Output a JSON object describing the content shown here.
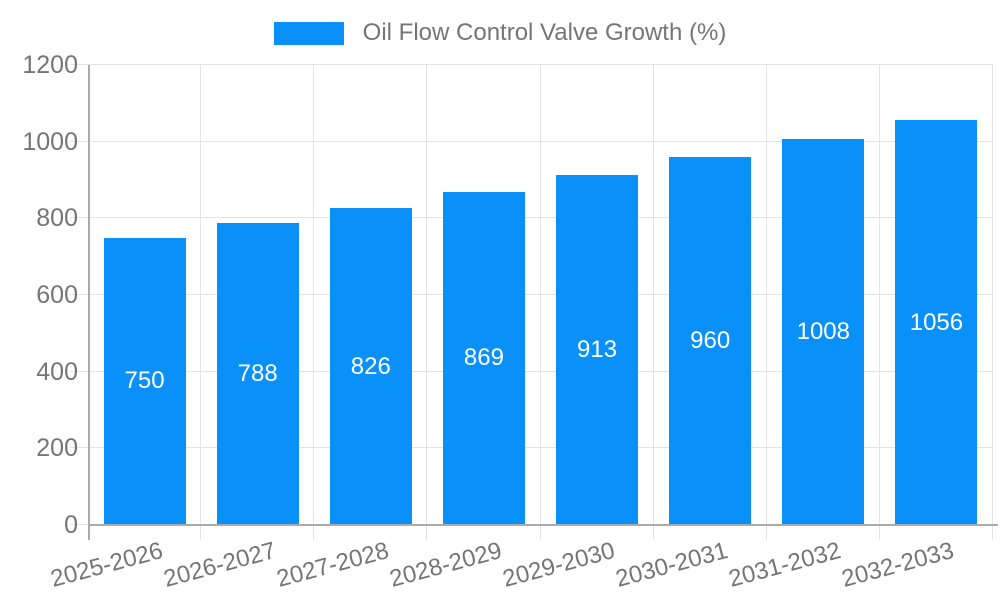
{
  "chart_data": {
    "type": "bar",
    "title": "Oil Flow Control Valve Growth (%)",
    "legend": [
      "Oil Flow Control Valve Growth (%)"
    ],
    "legend_position": "top-center",
    "categories": [
      "2025-2026",
      "2026-2027",
      "2027-2028",
      "2028-2029",
      "2029-2030",
      "2030-2031",
      "2031-2032",
      "2032-2033"
    ],
    "values": [
      750,
      788,
      826,
      869,
      913,
      960,
      1008,
      1056
    ],
    "yticks": [
      0,
      200,
      400,
      600,
      800,
      1000,
      1200
    ],
    "ylim": [
      0,
      1200
    ],
    "xlabel": "",
    "ylabel": "",
    "grid": "on",
    "x_label_rotation_deg": -15,
    "bar_value_labels": [
      "750",
      "788",
      "826",
      "869",
      "913",
      "960",
      "1008",
      "1056"
    ]
  },
  "colors": {
    "bar": "#0991f9",
    "bar_value_text": "#ffffff",
    "axis_text": "#757575",
    "gridline": "#e4e4e4",
    "axis_line": "#ababab",
    "background": "#ffffff"
  }
}
